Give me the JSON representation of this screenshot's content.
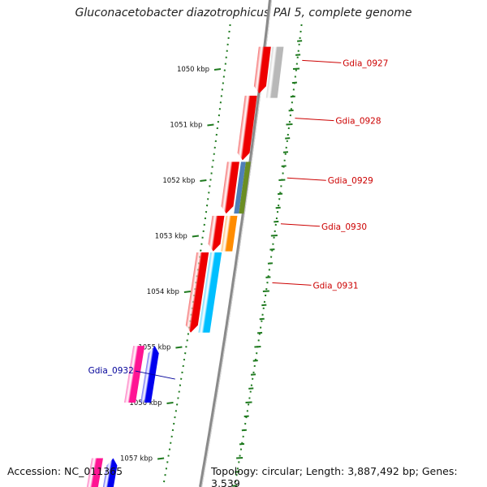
{
  "title": "Gluconacetobacter diazotrophicus PAI 5, complete genome",
  "footer": {
    "accession": "Accession: NC_011365",
    "summary": "Topology: circular; Length: 3,887,492 bp; Genes: 3,539"
  },
  "colors": {
    "backbone": "#8a8a8a",
    "tick": "#1f7a1f",
    "forward_label": "#cc0000",
    "reverse_label": "#000099"
  },
  "kbp_ticks": [
    {
      "kbp": 1050,
      "label": "1050 kbp"
    },
    {
      "kbp": 1051,
      "label": "1051 kbp"
    },
    {
      "kbp": 1052,
      "label": "1052 kbp"
    },
    {
      "kbp": 1053,
      "label": "1053 kbp"
    },
    {
      "kbp": 1054,
      "label": "1054 kbp"
    },
    {
      "kbp": 1055,
      "label": "1055 kbp"
    },
    {
      "kbp": 1056,
      "label": "1056 kbp"
    },
    {
      "kbp": 1057,
      "label": "1057 kbp"
    }
  ],
  "genes": [
    {
      "name": "Gdia_0927",
      "strand": "+",
      "start_kbp": 1049.6,
      "end_kbp": 1050.44,
      "color": "#ee0000",
      "cog_color": "#b8b8b8",
      "cog_start_kbp": 1049.6,
      "cog_end_kbp": 1050.52
    },
    {
      "name": "Gdia_0928",
      "strand": "+",
      "start_kbp": 1050.48,
      "end_kbp": 1051.64,
      "color": "#ee0000",
      "cog_color": null
    },
    {
      "name": "Gdia_0929",
      "strand": "+",
      "start_kbp": 1051.67,
      "end_kbp": 1052.6,
      "color": "#ee0000",
      "cog_color": "#4f7fb8",
      "cog_color2": "#6b8e23",
      "cog_start_kbp": 1051.67,
      "cog_end_kbp": 1052.6
    },
    {
      "name": "Gdia_0930",
      "strand": "+",
      "start_kbp": 1052.64,
      "end_kbp": 1053.28,
      "color": "#ee0000",
      "cog_color": "#ff8c00",
      "cog_start_kbp": 1052.64,
      "cog_end_kbp": 1053.28
    },
    {
      "name": "Gdia_0931",
      "strand": "+",
      "start_kbp": 1053.3,
      "end_kbp": 1054.74,
      "color": "#ee0000",
      "cog_color": "#00bfff",
      "cog_start_kbp": 1053.3,
      "cog_end_kbp": 1054.74
    },
    {
      "name": "Gdia_0932",
      "strand": "-",
      "start_kbp": 1054.98,
      "end_kbp": 1056.0,
      "color": "#0000ee",
      "cog_color": "#ff1493",
      "cog_start_kbp": 1054.98,
      "cog_end_kbp": 1056.0
    },
    {
      "name": "",
      "strand": "-",
      "start_kbp": 1057.0,
      "end_kbp": 1057.8,
      "color": "#0000ee",
      "cog_color": "#ff1493",
      "cog_start_kbp": 1057.0,
      "cog_end_kbp": 1057.8
    }
  ]
}
